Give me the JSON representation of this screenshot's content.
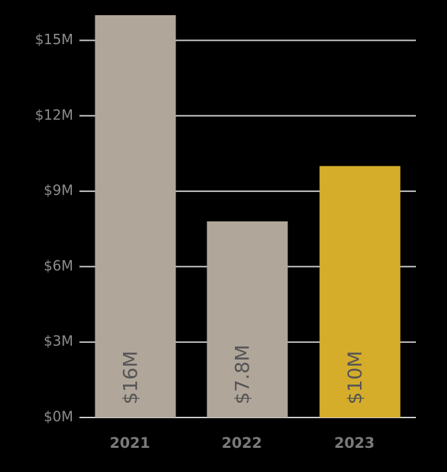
{
  "chart_data": {
    "type": "bar",
    "categories": [
      "2021",
      "2022",
      "2023"
    ],
    "values": [
      16000000,
      7800000,
      10000000
    ],
    "value_labels": [
      "$16M",
      "$7.8M",
      "$10M"
    ],
    "colors": [
      "#b0a69a",
      "#b0a69a",
      "#d5ad2b"
    ],
    "ylim": [
      0,
      16000000
    ],
    "yticks": [
      {
        "value": 0,
        "label": "$0M"
      },
      {
        "value": 3000000,
        "label": "$3M"
      },
      {
        "value": 6000000,
        "label": "$6M"
      },
      {
        "value": 9000000,
        "label": "$9M"
      },
      {
        "value": 12000000,
        "label": "$12M"
      },
      {
        "value": 15000000,
        "label": "$15M"
      }
    ],
    "grid": true
  }
}
